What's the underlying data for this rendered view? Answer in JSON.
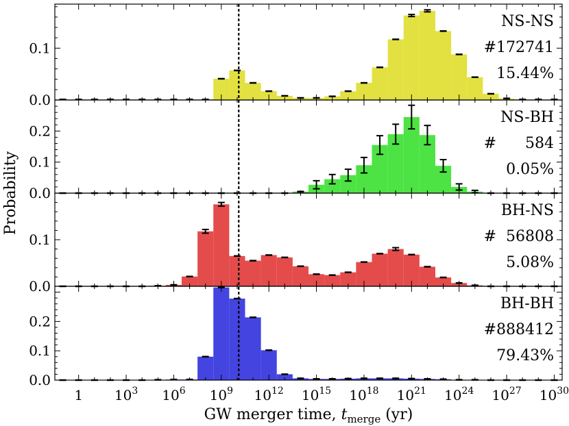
{
  "chart_data": {
    "type": "bar",
    "xlabel_main": "GW merger time, ",
    "xlabel_var": "t",
    "xlabel_sub": "merge",
    "xlabel_unit": " (yr)",
    "ylabel": "Probability",
    "x_scale": "log10",
    "x_bins_log10": [
      -1.5,
      -0.5,
      0.5,
      1.5,
      2.5,
      3.5,
      4.5,
      5.5,
      6.5,
      7.5,
      8.5,
      9.5,
      10.5,
      11.5,
      12.5,
      13.5,
      14.5,
      15.5,
      16.5,
      17.5,
      18.5,
      19.5,
      20.5,
      21.5,
      22.5,
      23.5,
      24.5,
      25.5,
      26.5,
      27.5,
      28.5,
      29.5,
      30.5
    ],
    "x_ticks": [
      {
        "base": "1",
        "exp": "",
        "log10": 0
      },
      {
        "base": "10",
        "exp": "3",
        "log10": 3
      },
      {
        "base": "10",
        "exp": "6",
        "log10": 6
      },
      {
        "base": "10",
        "exp": "9",
        "log10": 9
      },
      {
        "base": "10",
        "exp": "12",
        "log10": 12
      },
      {
        "base": "10",
        "exp": "15",
        "log10": 15
      },
      {
        "base": "10",
        "exp": "18",
        "log10": 18
      },
      {
        "base": "10",
        "exp": "21",
        "log10": 21
      },
      {
        "base": "10",
        "exp": "24",
        "log10": 24
      },
      {
        "base": "10",
        "exp": "27",
        "log10": 27
      },
      {
        "base": "10",
        "exp": "30",
        "log10": 30
      }
    ],
    "vline_log10": 10.1,
    "panels": [
      {
        "name": "NS-NS",
        "label_line2": "#172741",
        "label_line3": "15.44%",
        "color": "#e2e141",
        "ylim": [
          0,
          0.185
        ],
        "yticks": [
          {
            "value": 0.0,
            "label": "0.0"
          },
          {
            "value": 0.1,
            "label": "0.1"
          }
        ],
        "values": [
          0.001,
          0.001,
          0.001,
          0.001,
          0.001,
          0.001,
          0.001,
          0.001,
          0.001,
          0.001,
          0.041,
          0.057,
          0.033,
          0.017,
          0.008,
          0.004,
          0.004,
          0.007,
          0.017,
          0.033,
          0.063,
          0.117,
          0.163,
          0.172,
          0.133,
          0.088,
          0.044,
          0.012,
          0.003,
          0.001,
          0.001,
          0.001
        ],
        "errors": [
          0,
          0,
          0,
          0,
          0,
          0,
          0,
          0,
          0,
          0,
          0.001,
          0.001,
          0.001,
          0.001,
          0.001,
          0.001,
          0.001,
          0.001,
          0.001,
          0.001,
          0.001,
          0.001,
          0.002,
          0.002,
          0.001,
          0.001,
          0.001,
          0.001,
          0.001,
          0,
          0,
          0
        ]
      },
      {
        "name": "NS-BH",
        "label_line2": "#      584",
        "label_line3": "0.05%",
        "color": "#4ee344",
        "ylim": [
          0,
          0.3
        ],
        "yticks": [
          {
            "value": 0.0,
            "label": "0.0"
          },
          {
            "value": 0.1,
            "label": "0.1"
          },
          {
            "value": 0.2,
            "label": "0.2"
          }
        ],
        "values": [
          0,
          0,
          0,
          0,
          0,
          0,
          0,
          0,
          0,
          0,
          0,
          0,
          0,
          0,
          0,
          0.005,
          0.027,
          0.045,
          0.058,
          0.09,
          0.155,
          0.19,
          0.245,
          0.187,
          0.088,
          0.02,
          0.005,
          0,
          0,
          0,
          0,
          0
        ],
        "errors": [
          0,
          0,
          0,
          0,
          0,
          0,
          0,
          0,
          0,
          0,
          0,
          0,
          0,
          0,
          0,
          0,
          0.013,
          0.015,
          0.019,
          0.025,
          0.03,
          0.032,
          0.038,
          0.031,
          0.02,
          0.01,
          0.004,
          0,
          0,
          0,
          0,
          0
        ]
      },
      {
        "name": "BH-NS",
        "label_line2": "#  56808",
        "label_line3": "5.08%",
        "color": "#e44c4b",
        "ylim": [
          0,
          0.2
        ],
        "yticks": [
          {
            "value": 0.0,
            "label": "0.0"
          },
          {
            "value": 0.1,
            "label": "0.1"
          }
        ],
        "values": [
          0,
          0,
          0,
          0,
          0,
          0,
          0.001,
          0.003,
          0.021,
          0.118,
          0.176,
          0.065,
          0.055,
          0.067,
          0.062,
          0.043,
          0.026,
          0.024,
          0.03,
          0.052,
          0.07,
          0.08,
          0.068,
          0.042,
          0.019,
          0.007,
          0.002,
          0,
          0,
          0,
          0,
          0
        ],
        "errors": [
          0,
          0,
          0,
          0,
          0,
          0,
          0,
          0.001,
          0.002,
          0.004,
          0.004,
          0.002,
          0.002,
          0.002,
          0.002,
          0.002,
          0.001,
          0.001,
          0.001,
          0.002,
          0.002,
          0.003,
          0.002,
          0.002,
          0.001,
          0.001,
          0.001,
          0,
          0,
          0,
          0,
          0
        ]
      },
      {
        "name": "BH-BH",
        "label_line2": "#888412",
        "label_line3": "79.43%",
        "color": "#4444e0",
        "ylim": [
          0,
          0.32
        ],
        "yticks": [
          {
            "value": 0.0,
            "label": "0.0"
          },
          {
            "value": 0.1,
            "label": "0.1"
          },
          {
            "value": 0.2,
            "label": "0.2"
          }
        ],
        "values": [
          0,
          0,
          0,
          0,
          0,
          0,
          0.001,
          0.002,
          0.002,
          0.08,
          0.316,
          0.278,
          0.214,
          0.102,
          0.02,
          0.006,
          0.004,
          0.004,
          0.005,
          0.006,
          0.006,
          0.006,
          0.005,
          0.004,
          0.003,
          0.001,
          0.001,
          0,
          0,
          0,
          0,
          0
        ],
        "errors": [
          0,
          0,
          0,
          0,
          0,
          0,
          0,
          0,
          0,
          0.001,
          0.001,
          0.001,
          0.001,
          0.001,
          0.001,
          0,
          0,
          0,
          0,
          0,
          0,
          0,
          0,
          0,
          0,
          0,
          0,
          0,
          0,
          0,
          0,
          0
        ]
      }
    ]
  }
}
